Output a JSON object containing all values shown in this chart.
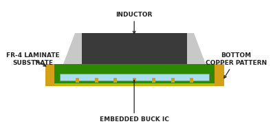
{
  "bg_color": "#ffffff",
  "fig_width": 3.97,
  "fig_height": 1.96,
  "dpi": 100,
  "colors": {
    "green_board": "#2d8a00",
    "gold_pad": "#d4a017",
    "dark_olive": "#c8b400",
    "light_gray_inductor_body": "#cccccc",
    "dark_gray_inductor_core": "#3a3a3a",
    "light_blue_ic": "#aaddee",
    "arrow": "#222222",
    "text": "#222222",
    "white": "#ffffff",
    "green_board_dark": "#1a6600"
  },
  "labels": {
    "inductor": "INDUCTOR",
    "fr4": "FR-4 LAMINATE\nSUBSTRATE",
    "bottom_copper": "BOTTOM\nCOPPER PATTERN",
    "embedded_buck": "EMBEDDED BUCK IC"
  },
  "label_fontsize": 6.5,
  "label_fontweight": "bold"
}
